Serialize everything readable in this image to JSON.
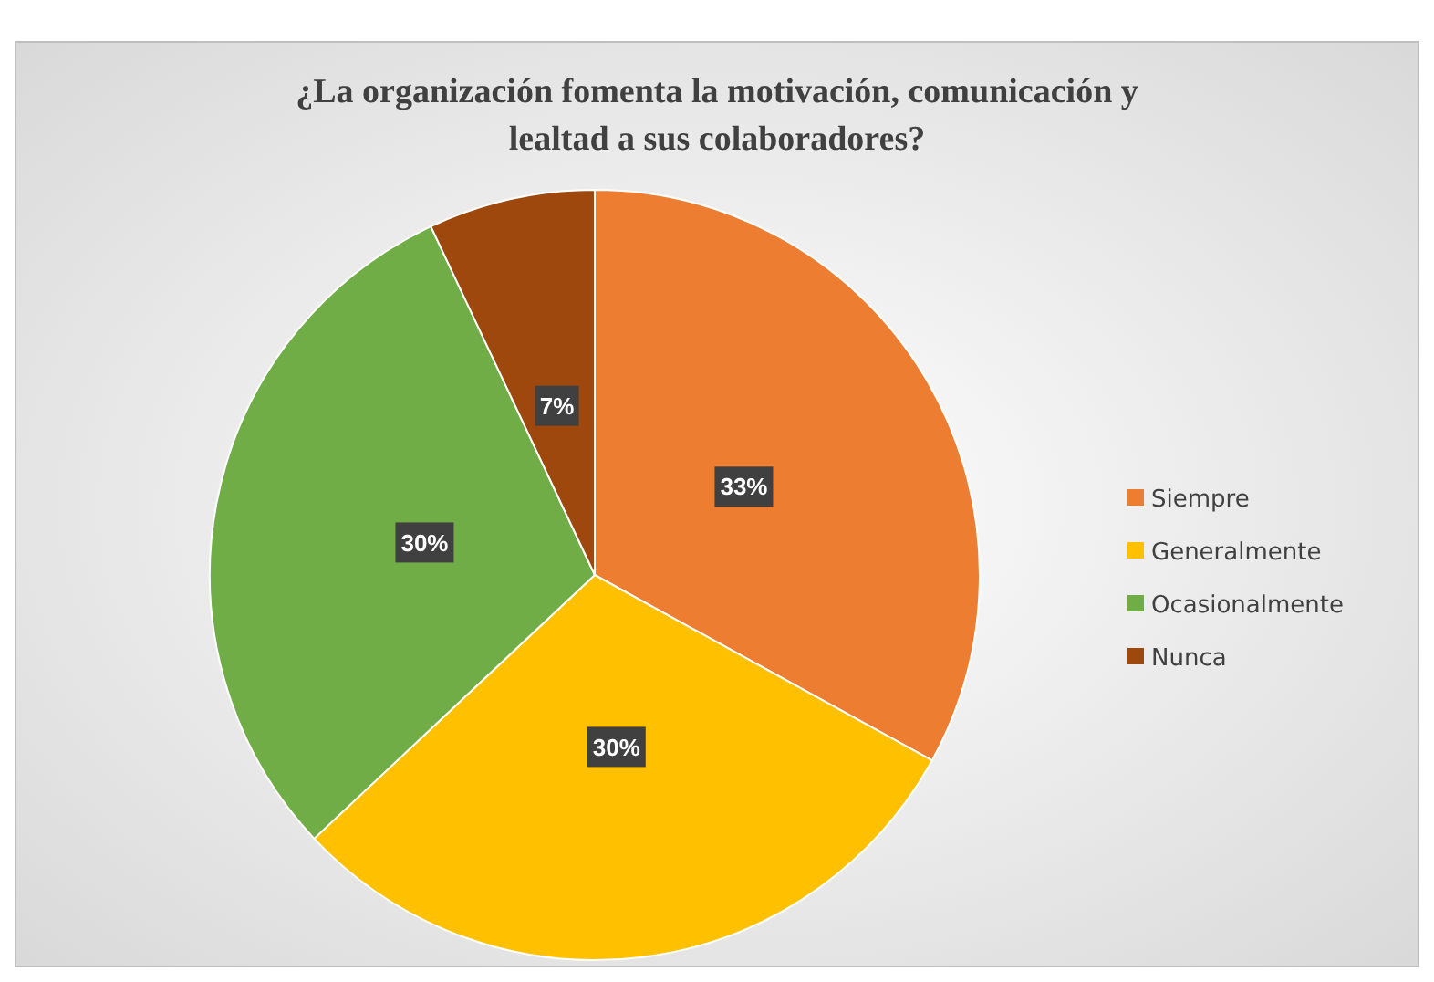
{
  "chart_data": {
    "type": "pie",
    "title": "¿La organización fomenta la motivación, comunicación y lealtad a sus colaboradores?",
    "categories": [
      "Siempre",
      "Generalmente",
      "Ocasionalmente",
      "Nunca"
    ],
    "values": [
      33,
      30,
      30,
      7
    ],
    "colors": [
      "#ed7d31",
      "#ffc000",
      "#70ad47",
      "#9e480e"
    ],
    "value_labels": [
      "33%",
      "30%",
      "30%",
      "7%"
    ],
    "legend": "right"
  }
}
